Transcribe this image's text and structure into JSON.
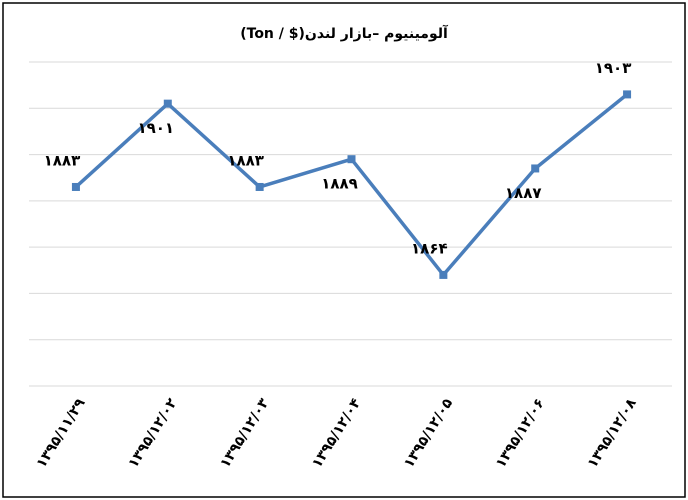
{
  "chart_data": {
    "type": "line",
    "title": "آلومینیوم –بازار لندن($ / Ton)",
    "categories": [
      "۱۳۹۵/۱۱/۲۹",
      "۱۳۹۵/۱۲/۰۲",
      "۱۳۹۵/۱۲/۰۳",
      "۱۳۹۵/۱۲/۰۴",
      "۱۳۹۵/۱۲/۰۵",
      "۱۳۹۵/۱۲/۰۶",
      "۱۳۹۵/۱۲/۰۸"
    ],
    "values": [
      1883,
      1901,
      1883,
      1889,
      1864,
      1887,
      1903
    ],
    "value_labels": [
      "۱۸۸۳",
      "۱۹۰۱",
      "۱۸۸۳",
      "۱۸۸۹",
      "۱۸۶۴",
      "۱۸۸۷",
      "۱۹۰۳"
    ],
    "color": "#4a7ebb",
    "ylim": [
      1840,
      1910
    ],
    "yticks": [
      1840,
      1850,
      1860,
      1870,
      1880,
      1890,
      1900,
      1910
    ],
    "grid": true
  }
}
